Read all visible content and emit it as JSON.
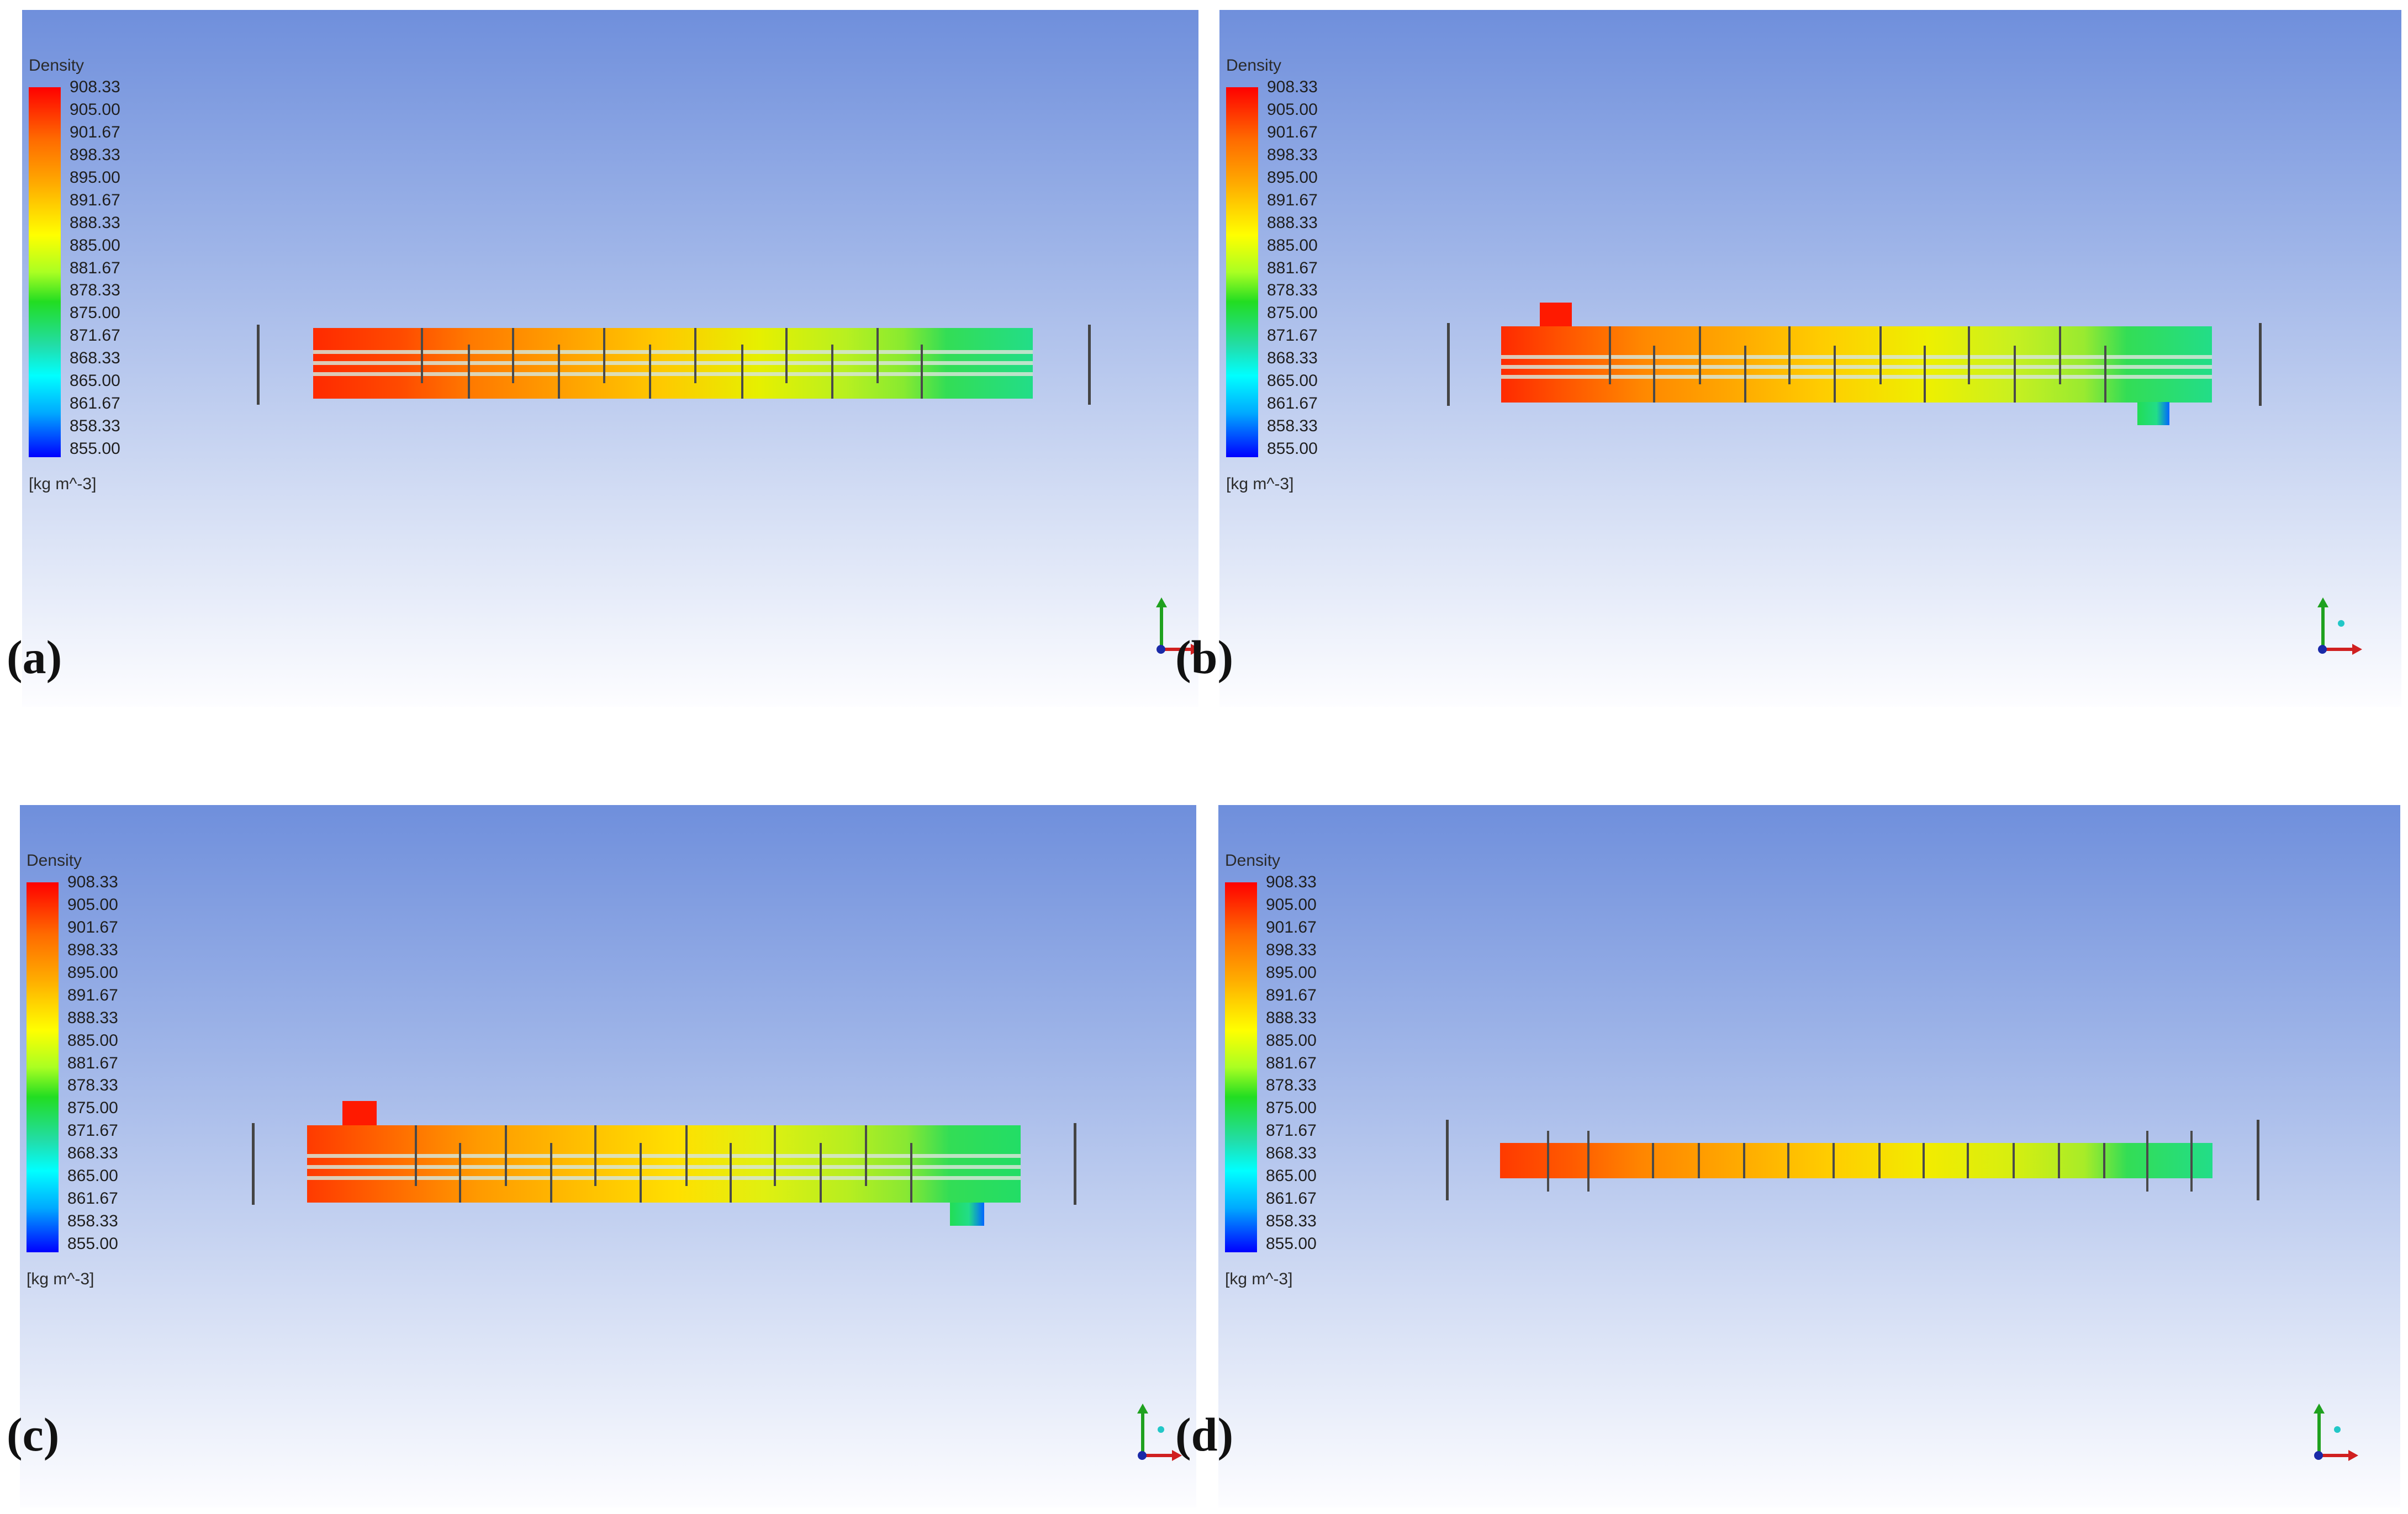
{
  "legend": {
    "title": "Density",
    "ticks": [
      "908.33",
      "905.00",
      "901.67",
      "898.33",
      "895.00",
      "891.67",
      "888.33",
      "885.00",
      "881.67",
      "878.33",
      "875.00",
      "871.67",
      "868.33",
      "865.00",
      "861.67",
      "858.33",
      "855.00"
    ],
    "unit": "[kg m^-3]"
  },
  "panels": {
    "a": {
      "label": "(a)"
    },
    "b": {
      "label": "(b)"
    },
    "c": {
      "label": "(c)"
    },
    "d": {
      "label": "(d)"
    }
  },
  "colors": {
    "high_density": "#ff2a00",
    "mid_density": "#ffd000",
    "low_density": "#22dd55"
  }
}
